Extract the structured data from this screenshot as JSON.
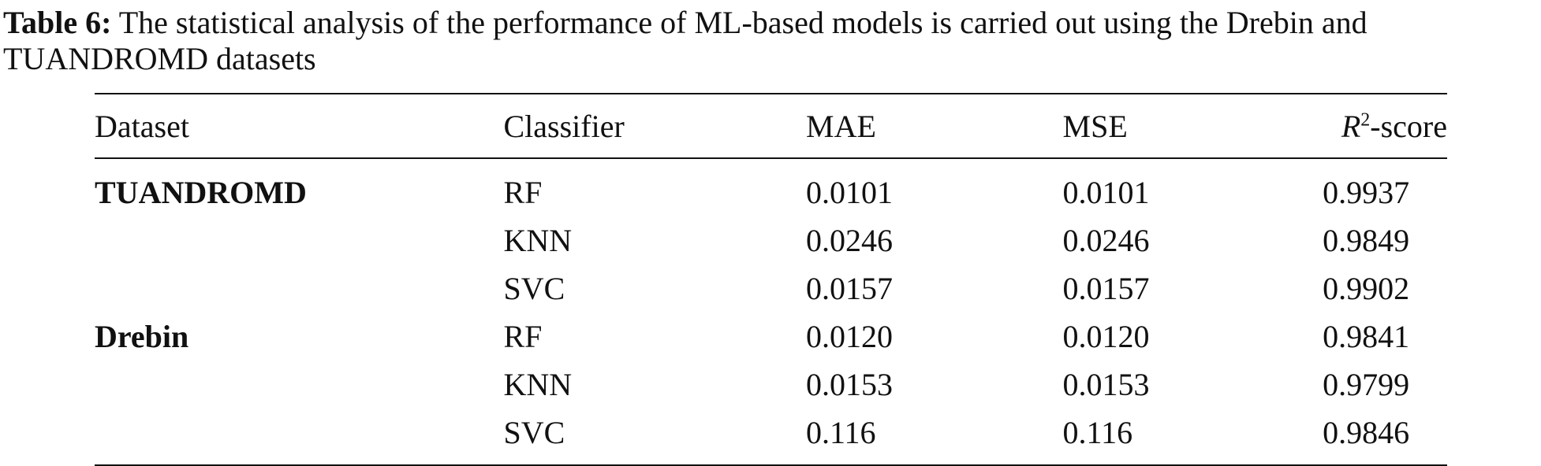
{
  "caption": {
    "label": "Table 6:",
    "text": " The statistical analysis of the performance of ML-based models is carried out using the Drebin and TUANDROMD datasets"
  },
  "table": {
    "headers": {
      "dataset": "Dataset",
      "classifier": "Classifier",
      "mae": "MAE",
      "mse": "MSE",
      "r2_base": "R",
      "r2_sup": "2",
      "r2_suffix": "-score"
    },
    "rows": [
      {
        "dataset": "TUANDROMD",
        "classifier": "RF",
        "mae": "0.0101",
        "mse": "0.0101",
        "r2": "0.9937"
      },
      {
        "dataset": "",
        "classifier": "KNN",
        "mae": "0.0246",
        "mse": "0.0246",
        "r2": "0.9849"
      },
      {
        "dataset": "",
        "classifier": "SVC",
        "mae": "0.0157",
        "mse": "0.0157",
        "r2": "0.9902"
      },
      {
        "dataset": "Drebin",
        "classifier": "RF",
        "mae": "0.0120",
        "mse": "0.0120",
        "r2": "0.9841"
      },
      {
        "dataset": "",
        "classifier": "KNN",
        "mae": "0.0153",
        "mse": "0.0153",
        "r2": "0.9799"
      },
      {
        "dataset": "",
        "classifier": "SVC",
        "mae": "0.116",
        "mse": "0.116",
        "r2": "0.9846"
      }
    ]
  }
}
